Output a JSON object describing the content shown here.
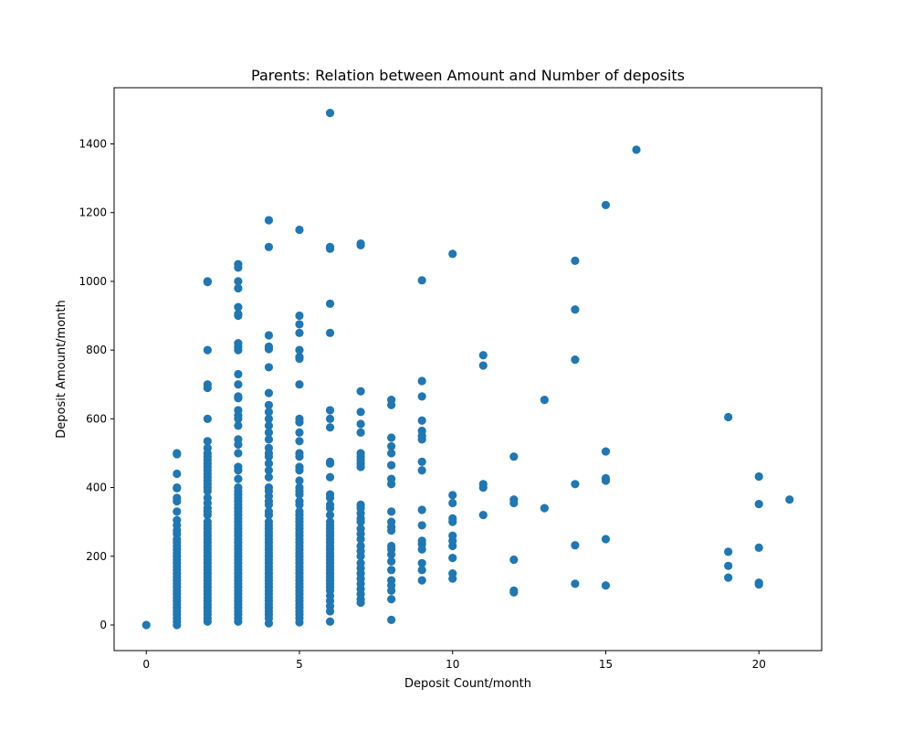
{
  "chart_data": {
    "type": "scatter",
    "title": "Parents: Relation between Amount and Number of deposits",
    "xlabel": "Deposit Count/month",
    "ylabel": "Deposit Amount/month",
    "xlim": [
      -1.05,
      22.05
    ],
    "ylim": [
      -74.5,
      1563.5
    ],
    "xticks": [
      0,
      5,
      10,
      15,
      20
    ],
    "yticks": [
      0,
      200,
      400,
      600,
      800,
      1000,
      1200,
      1400
    ],
    "grid": false,
    "legend": "none",
    "color": "#1f77b4",
    "points": [
      [
        0,
        0
      ],
      [
        1,
        500
      ],
      [
        1,
        497
      ],
      [
        1,
        440
      ],
      [
        1,
        400
      ],
      [
        1,
        398
      ],
      [
        1,
        370
      ],
      [
        1,
        360
      ],
      [
        1,
        330
      ],
      [
        1,
        305
      ],
      [
        1,
        290
      ],
      [
        1,
        275
      ],
      [
        1,
        265
      ],
      [
        1,
        250
      ],
      [
        1,
        240
      ],
      [
        1,
        230
      ],
      [
        1,
        220
      ],
      [
        1,
        210
      ],
      [
        1,
        200
      ],
      [
        1,
        190
      ],
      [
        1,
        180
      ],
      [
        1,
        170
      ],
      [
        1,
        160
      ],
      [
        1,
        150
      ],
      [
        1,
        140
      ],
      [
        1,
        130
      ],
      [
        1,
        120
      ],
      [
        1,
        110
      ],
      [
        1,
        100
      ],
      [
        1,
        90
      ],
      [
        1,
        80
      ],
      [
        1,
        70
      ],
      [
        1,
        60
      ],
      [
        1,
        50
      ],
      [
        1,
        40
      ],
      [
        1,
        30
      ],
      [
        1,
        20
      ],
      [
        1,
        10
      ],
      [
        1,
        0
      ],
      [
        2,
        1000
      ],
      [
        2,
        998
      ],
      [
        2,
        800
      ],
      [
        2,
        700
      ],
      [
        2,
        690
      ],
      [
        2,
        600
      ],
      [
        2,
        535
      ],
      [
        2,
        515
      ],
      [
        2,
        500
      ],
      [
        2,
        490
      ],
      [
        2,
        480
      ],
      [
        2,
        470
      ],
      [
        2,
        460
      ],
      [
        2,
        450
      ],
      [
        2,
        440
      ],
      [
        2,
        430
      ],
      [
        2,
        420
      ],
      [
        2,
        410
      ],
      [
        2,
        400
      ],
      [
        2,
        390
      ],
      [
        2,
        370
      ],
      [
        2,
        355
      ],
      [
        2,
        340
      ],
      [
        2,
        330
      ],
      [
        2,
        320
      ],
      [
        2,
        300
      ],
      [
        2,
        290
      ],
      [
        2,
        280
      ],
      [
        2,
        270
      ],
      [
        2,
        260
      ],
      [
        2,
        250
      ],
      [
        2,
        240
      ],
      [
        2,
        230
      ],
      [
        2,
        220
      ],
      [
        2,
        210
      ],
      [
        2,
        200
      ],
      [
        2,
        190
      ],
      [
        2,
        180
      ],
      [
        2,
        170
      ],
      [
        2,
        160
      ],
      [
        2,
        150
      ],
      [
        2,
        140
      ],
      [
        2,
        130
      ],
      [
        2,
        120
      ],
      [
        2,
        110
      ],
      [
        2,
        100
      ],
      [
        2,
        90
      ],
      [
        2,
        80
      ],
      [
        2,
        70
      ],
      [
        2,
        60
      ],
      [
        2,
        50
      ],
      [
        2,
        40
      ],
      [
        2,
        30
      ],
      [
        2,
        20
      ],
      [
        2,
        10
      ],
      [
        3,
        1050
      ],
      [
        3,
        1040
      ],
      [
        3,
        1000
      ],
      [
        3,
        980
      ],
      [
        3,
        925
      ],
      [
        3,
        905
      ],
      [
        3,
        900
      ],
      [
        3,
        820
      ],
      [
        3,
        810
      ],
      [
        3,
        800
      ],
      [
        3,
        730
      ],
      [
        3,
        700
      ],
      [
        3,
        665
      ],
      [
        3,
        660
      ],
      [
        3,
        625
      ],
      [
        3,
        610
      ],
      [
        3,
        600
      ],
      [
        3,
        580
      ],
      [
        3,
        540
      ],
      [
        3,
        525
      ],
      [
        3,
        500
      ],
      [
        3,
        460
      ],
      [
        3,
        450
      ],
      [
        3,
        425
      ],
      [
        3,
        400
      ],
      [
        3,
        390
      ],
      [
        3,
        380
      ],
      [
        3,
        370
      ],
      [
        3,
        360
      ],
      [
        3,
        350
      ],
      [
        3,
        340
      ],
      [
        3,
        330
      ],
      [
        3,
        320
      ],
      [
        3,
        310
      ],
      [
        3,
        300
      ],
      [
        3,
        290
      ],
      [
        3,
        280
      ],
      [
        3,
        270
      ],
      [
        3,
        260
      ],
      [
        3,
        250
      ],
      [
        3,
        240
      ],
      [
        3,
        230
      ],
      [
        3,
        220
      ],
      [
        3,
        210
      ],
      [
        3,
        200
      ],
      [
        3,
        190
      ],
      [
        3,
        180
      ],
      [
        3,
        170
      ],
      [
        3,
        160
      ],
      [
        3,
        150
      ],
      [
        3,
        140
      ],
      [
        3,
        130
      ],
      [
        3,
        120
      ],
      [
        3,
        110
      ],
      [
        3,
        100
      ],
      [
        3,
        90
      ],
      [
        3,
        80
      ],
      [
        3,
        70
      ],
      [
        3,
        60
      ],
      [
        3,
        50
      ],
      [
        3,
        40
      ],
      [
        3,
        30
      ],
      [
        3,
        20
      ],
      [
        3,
        10
      ],
      [
        4,
        1178
      ],
      [
        4,
        1100
      ],
      [
        4,
        843
      ],
      [
        4,
        810
      ],
      [
        4,
        803
      ],
      [
        4,
        750
      ],
      [
        4,
        675
      ],
      [
        4,
        640
      ],
      [
        4,
        620
      ],
      [
        4,
        600
      ],
      [
        4,
        580
      ],
      [
        4,
        560
      ],
      [
        4,
        540
      ],
      [
        4,
        515
      ],
      [
        4,
        500
      ],
      [
        4,
        490
      ],
      [
        4,
        470
      ],
      [
        4,
        450
      ],
      [
        4,
        430
      ],
      [
        4,
        400
      ],
      [
        4,
        390
      ],
      [
        4,
        375
      ],
      [
        4,
        360
      ],
      [
        4,
        350
      ],
      [
        4,
        330
      ],
      [
        4,
        320
      ],
      [
        4,
        300
      ],
      [
        4,
        290
      ],
      [
        4,
        280
      ],
      [
        4,
        270
      ],
      [
        4,
        260
      ],
      [
        4,
        250
      ],
      [
        4,
        240
      ],
      [
        4,
        230
      ],
      [
        4,
        220
      ],
      [
        4,
        210
      ],
      [
        4,
        200
      ],
      [
        4,
        190
      ],
      [
        4,
        180
      ],
      [
        4,
        170
      ],
      [
        4,
        160
      ],
      [
        4,
        150
      ],
      [
        4,
        140
      ],
      [
        4,
        130
      ],
      [
        4,
        120
      ],
      [
        4,
        110
      ],
      [
        4,
        100
      ],
      [
        4,
        90
      ],
      [
        4,
        80
      ],
      [
        4,
        70
      ],
      [
        4,
        60
      ],
      [
        4,
        50
      ],
      [
        4,
        40
      ],
      [
        4,
        30
      ],
      [
        4,
        20
      ],
      [
        4,
        5
      ],
      [
        5,
        1150
      ],
      [
        5,
        900
      ],
      [
        5,
        875
      ],
      [
        5,
        850
      ],
      [
        5,
        800
      ],
      [
        5,
        780
      ],
      [
        5,
        775
      ],
      [
        5,
        700
      ],
      [
        5,
        600
      ],
      [
        5,
        590
      ],
      [
        5,
        560
      ],
      [
        5,
        535
      ],
      [
        5,
        500
      ],
      [
        5,
        490
      ],
      [
        5,
        460
      ],
      [
        5,
        450
      ],
      [
        5,
        420
      ],
      [
        5,
        400
      ],
      [
        5,
        390
      ],
      [
        5,
        380
      ],
      [
        5,
        360
      ],
      [
        5,
        350
      ],
      [
        5,
        330
      ],
      [
        5,
        320
      ],
      [
        5,
        310
      ],
      [
        5,
        300
      ],
      [
        5,
        290
      ],
      [
        5,
        280
      ],
      [
        5,
        270
      ],
      [
        5,
        260
      ],
      [
        5,
        250
      ],
      [
        5,
        240
      ],
      [
        5,
        230
      ],
      [
        5,
        220
      ],
      [
        5,
        210
      ],
      [
        5,
        200
      ],
      [
        5,
        190
      ],
      [
        5,
        180
      ],
      [
        5,
        170
      ],
      [
        5,
        160
      ],
      [
        5,
        150
      ],
      [
        5,
        140
      ],
      [
        5,
        130
      ],
      [
        5,
        120
      ],
      [
        5,
        110
      ],
      [
        5,
        100
      ],
      [
        5,
        90
      ],
      [
        5,
        80
      ],
      [
        5,
        70
      ],
      [
        5,
        60
      ],
      [
        5,
        50
      ],
      [
        5,
        40
      ],
      [
        5,
        30
      ],
      [
        5,
        20
      ],
      [
        5,
        8
      ],
      [
        6,
        1490
      ],
      [
        6,
        1100
      ],
      [
        6,
        1095
      ],
      [
        6,
        935
      ],
      [
        6,
        850
      ],
      [
        6,
        625
      ],
      [
        6,
        600
      ],
      [
        6,
        575
      ],
      [
        6,
        475
      ],
      [
        6,
        470
      ],
      [
        6,
        430
      ],
      [
        6,
        380
      ],
      [
        6,
        370
      ],
      [
        6,
        350
      ],
      [
        6,
        340
      ],
      [
        6,
        320
      ],
      [
        6,
        300
      ],
      [
        6,
        290
      ],
      [
        6,
        280
      ],
      [
        6,
        270
      ],
      [
        6,
        260
      ],
      [
        6,
        250
      ],
      [
        6,
        240
      ],
      [
        6,
        230
      ],
      [
        6,
        220
      ],
      [
        6,
        210
      ],
      [
        6,
        200
      ],
      [
        6,
        190
      ],
      [
        6,
        180
      ],
      [
        6,
        170
      ],
      [
        6,
        160
      ],
      [
        6,
        150
      ],
      [
        6,
        140
      ],
      [
        6,
        130
      ],
      [
        6,
        120
      ],
      [
        6,
        110
      ],
      [
        6,
        100
      ],
      [
        6,
        85
      ],
      [
        6,
        70
      ],
      [
        6,
        55
      ],
      [
        6,
        40
      ],
      [
        6,
        10
      ],
      [
        7,
        1110
      ],
      [
        7,
        1105
      ],
      [
        7,
        680
      ],
      [
        7,
        620
      ],
      [
        7,
        585
      ],
      [
        7,
        560
      ],
      [
        7,
        500
      ],
      [
        7,
        490
      ],
      [
        7,
        480
      ],
      [
        7,
        470
      ],
      [
        7,
        460
      ],
      [
        7,
        350
      ],
      [
        7,
        340
      ],
      [
        7,
        325
      ],
      [
        7,
        310
      ],
      [
        7,
        300
      ],
      [
        7,
        280
      ],
      [
        7,
        265
      ],
      [
        7,
        250
      ],
      [
        7,
        230
      ],
      [
        7,
        215
      ],
      [
        7,
        200
      ],
      [
        7,
        180
      ],
      [
        7,
        165
      ],
      [
        7,
        150
      ],
      [
        7,
        135
      ],
      [
        7,
        120
      ],
      [
        7,
        105
      ],
      [
        7,
        90
      ],
      [
        7,
        75
      ],
      [
        7,
        65
      ],
      [
        8,
        655
      ],
      [
        8,
        640
      ],
      [
        8,
        545
      ],
      [
        8,
        520
      ],
      [
        8,
        500
      ],
      [
        8,
        465
      ],
      [
        8,
        425
      ],
      [
        8,
        410
      ],
      [
        8,
        330
      ],
      [
        8,
        300
      ],
      [
        8,
        285
      ],
      [
        8,
        275
      ],
      [
        8,
        230
      ],
      [
        8,
        220
      ],
      [
        8,
        205
      ],
      [
        8,
        185
      ],
      [
        8,
        160
      ],
      [
        8,
        130
      ],
      [
        8,
        115
      ],
      [
        8,
        100
      ],
      [
        8,
        75
      ],
      [
        8,
        15
      ],
      [
        9,
        1003
      ],
      [
        9,
        710
      ],
      [
        9,
        665
      ],
      [
        9,
        595
      ],
      [
        9,
        565
      ],
      [
        9,
        550
      ],
      [
        9,
        540
      ],
      [
        9,
        475
      ],
      [
        9,
        450
      ],
      [
        9,
        335
      ],
      [
        9,
        290
      ],
      [
        9,
        245
      ],
      [
        9,
        235
      ],
      [
        9,
        220
      ],
      [
        9,
        180
      ],
      [
        9,
        160
      ],
      [
        9,
        130
      ],
      [
        10,
        1080
      ],
      [
        10,
        378
      ],
      [
        10,
        355
      ],
      [
        10,
        310
      ],
      [
        10,
        300
      ],
      [
        10,
        260
      ],
      [
        10,
        245
      ],
      [
        10,
        230
      ],
      [
        10,
        195
      ],
      [
        10,
        150
      ],
      [
        10,
        135
      ],
      [
        11,
        785
      ],
      [
        11,
        755
      ],
      [
        11,
        410
      ],
      [
        11,
        400
      ],
      [
        11,
        320
      ],
      [
        12,
        490
      ],
      [
        12,
        365
      ],
      [
        12,
        355
      ],
      [
        12,
        190
      ],
      [
        12,
        100
      ],
      [
        12,
        95
      ],
      [
        13,
        655
      ],
      [
        13,
        340
      ],
      [
        14,
        1060
      ],
      [
        14,
        918
      ],
      [
        14,
        772
      ],
      [
        14,
        410
      ],
      [
        14,
        232
      ],
      [
        14,
        120
      ],
      [
        15,
        1222
      ],
      [
        15,
        505
      ],
      [
        15,
        427
      ],
      [
        15,
        420
      ],
      [
        15,
        250
      ],
      [
        15,
        115
      ],
      [
        16,
        1383
      ],
      [
        19,
        605
      ],
      [
        19,
        213
      ],
      [
        19,
        172
      ],
      [
        19,
        138
      ],
      [
        20,
        432
      ],
      [
        20,
        352
      ],
      [
        20,
        225
      ],
      [
        20,
        123
      ],
      [
        20,
        118
      ],
      [
        21,
        365
      ]
    ]
  }
}
